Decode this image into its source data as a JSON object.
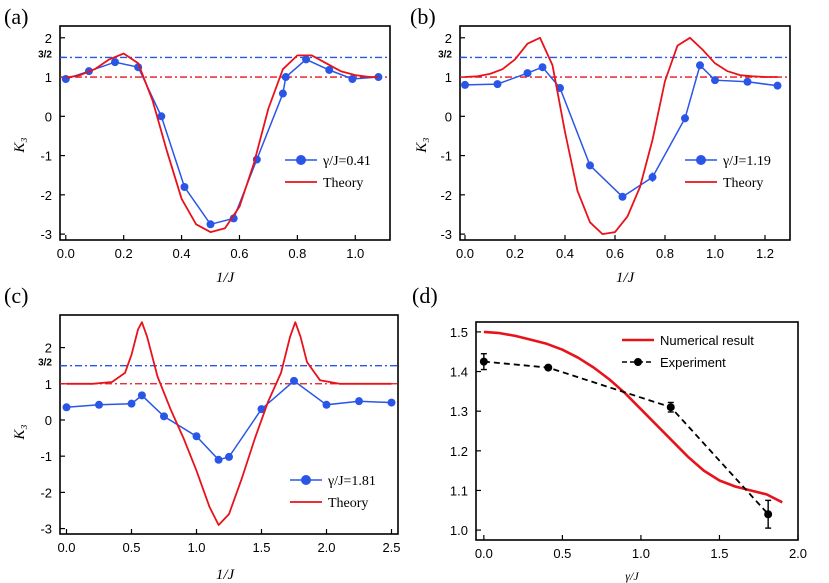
{
  "colors": {
    "experiment": "#2a56e8",
    "theory": "#e8121b",
    "ref_blue": "#2a56e8",
    "ref_red": "#e8121b",
    "numerical": "#e8121b",
    "exp_black": "#000000"
  },
  "chart_data": [
    {
      "panel": "(a)",
      "type": "line",
      "ylabel": "K₃",
      "xlabel": "1/J",
      "xlim": [
        -0.02,
        1.12
      ],
      "ylim": [
        -3.15,
        2.3
      ],
      "xticks": [
        0.0,
        0.2,
        0.4,
        0.6,
        0.8,
        1.0
      ],
      "xtick_labels": [
        "0.0",
        "0.2",
        "0.4",
        "0.6",
        "0.8",
        "1.0"
      ],
      "yticks": [
        -3,
        -2,
        -1,
        0,
        1,
        1.5,
        2
      ],
      "ytick_labels": [
        "-3",
        "-2",
        "-1",
        "0",
        "1",
        "3/2",
        "2"
      ],
      "reference_lines": [
        {
          "y": 1.5,
          "color": "blue",
          "style": "dashdot"
        },
        {
          "y": 1.0,
          "color": "red",
          "style": "dashdot"
        }
      ],
      "legend_position": "bottom-right",
      "series": [
        {
          "name": "γ/J=0.41",
          "kind": "experiment",
          "x": [
            0.0,
            0.08,
            0.17,
            0.25,
            0.33,
            0.41,
            0.5,
            0.58,
            0.66,
            0.75,
            0.76,
            0.83,
            0.91,
            0.99,
            1.08
          ],
          "y": [
            0.95,
            1.15,
            1.38,
            1.25,
            0.0,
            -1.8,
            -2.75,
            -2.6,
            -1.1,
            0.58,
            1.0,
            1.45,
            1.18,
            0.95,
            1.0
          ]
        },
        {
          "name": "Theory",
          "kind": "theory",
          "x": [
            0.0,
            0.05,
            0.1,
            0.15,
            0.2,
            0.25,
            0.3,
            0.35,
            0.4,
            0.45,
            0.5,
            0.55,
            0.6,
            0.65,
            0.7,
            0.75,
            0.8,
            0.85,
            0.9,
            0.95,
            1.0,
            1.05,
            1.08
          ],
          "y": [
            0.98,
            1.05,
            1.2,
            1.45,
            1.6,
            1.35,
            0.4,
            -0.9,
            -2.1,
            -2.75,
            -2.95,
            -2.85,
            -2.3,
            -1.2,
            0.2,
            1.2,
            1.55,
            1.55,
            1.35,
            1.15,
            1.05,
            1.0,
            1.0
          ]
        }
      ]
    },
    {
      "panel": "(b)",
      "type": "line",
      "ylabel": "K₃",
      "xlabel": "1/J",
      "xlim": [
        -0.02,
        1.3
      ],
      "ylim": [
        -3.15,
        2.3
      ],
      "xticks": [
        0.0,
        0.2,
        0.4,
        0.6,
        0.8,
        1.0,
        1.2
      ],
      "xtick_labels": [
        "0.0",
        "0.2",
        "0.4",
        "0.6",
        "0.8",
        "1.0",
        "1.2"
      ],
      "yticks": [
        -3,
        -2,
        -1,
        0,
        1,
        1.5,
        2
      ],
      "ytick_labels": [
        "-3",
        "-2",
        "-1",
        "0",
        "1",
        "3/2",
        "2"
      ],
      "reference_lines": [
        {
          "y": 1.5,
          "color": "blue",
          "style": "dashdot"
        },
        {
          "y": 1.0,
          "color": "red",
          "style": "dashdot"
        }
      ],
      "legend_position": "bottom-right",
      "series": [
        {
          "name": "γ/J=1.19",
          "kind": "experiment",
          "x": [
            0.0,
            0.13,
            0.25,
            0.31,
            0.38,
            0.5,
            0.63,
            0.75,
            0.88,
            0.94,
            1.0,
            1.13,
            1.25
          ],
          "y": [
            0.8,
            0.82,
            1.1,
            1.25,
            0.72,
            -1.25,
            -2.05,
            -1.55,
            -0.05,
            1.3,
            0.92,
            0.88,
            0.78
          ],
          "errors": [
            0,
            0,
            0.08,
            0,
            0,
            0,
            0,
            0.12,
            0.1,
            0,
            0,
            0,
            0
          ]
        },
        {
          "name": "Theory",
          "kind": "theory",
          "x": [
            0.0,
            0.05,
            0.1,
            0.15,
            0.2,
            0.25,
            0.3,
            0.35,
            0.4,
            0.45,
            0.5,
            0.55,
            0.6,
            0.65,
            0.7,
            0.75,
            0.8,
            0.85,
            0.9,
            0.95,
            1.0,
            1.05,
            1.1,
            1.15,
            1.2,
            1.25
          ],
          "y": [
            1.0,
            1.02,
            1.08,
            1.2,
            1.45,
            1.85,
            2.0,
            1.3,
            -0.4,
            -1.9,
            -2.7,
            -3.0,
            -2.95,
            -2.55,
            -1.8,
            -0.6,
            0.9,
            1.8,
            2.0,
            1.7,
            1.35,
            1.15,
            1.05,
            1.02,
            1.0,
            1.0
          ]
        }
      ]
    },
    {
      "panel": "(c)",
      "type": "line",
      "ylabel": "K₃",
      "xlabel": "1/J",
      "xlim": [
        -0.05,
        2.55
      ],
      "ylim": [
        -3.15,
        2.9
      ],
      "xticks": [
        0.0,
        0.5,
        1.0,
        1.5,
        2.0,
        2.5
      ],
      "xtick_labels": [
        "0.0",
        "0.5",
        "1.0",
        "1.5",
        "2.0",
        "2.5"
      ],
      "yticks": [
        -3,
        -2,
        -1,
        0,
        1,
        1.5,
        2
      ],
      "ytick_labels": [
        "-3",
        "-2",
        "-1",
        "0",
        "1",
        "3/2",
        "2"
      ],
      "reference_lines": [
        {
          "y": 1.5,
          "color": "blue",
          "style": "dashdot"
        },
        {
          "y": 1.0,
          "color": "red",
          "style": "dashdot"
        }
      ],
      "legend_position": "bottom-right",
      "series": [
        {
          "name": "γ/J=1.81",
          "kind": "experiment",
          "x": [
            0.0,
            0.25,
            0.5,
            0.58,
            0.75,
            1.0,
            1.17,
            1.25,
            1.5,
            1.75,
            2.0,
            2.25,
            2.5
          ],
          "y": [
            0.35,
            0.42,
            0.45,
            0.68,
            0.1,
            -0.45,
            -1.1,
            -1.02,
            0.3,
            1.08,
            0.42,
            0.52,
            0.48
          ],
          "errors": [
            0,
            0.1,
            0,
            0.08,
            0,
            0,
            0.06,
            0,
            0,
            0.06,
            0,
            0,
            0
          ]
        },
        {
          "name": "Theory",
          "kind": "theory",
          "x": [
            0.0,
            0.2,
            0.35,
            0.45,
            0.5,
            0.55,
            0.58,
            0.62,
            0.7,
            0.8,
            0.9,
            1.0,
            1.1,
            1.17,
            1.25,
            1.35,
            1.45,
            1.55,
            1.65,
            1.72,
            1.76,
            1.8,
            1.85,
            1.95,
            2.1,
            2.3,
            2.5
          ],
          "y": [
            1.0,
            1.0,
            1.05,
            1.3,
            1.8,
            2.5,
            2.7,
            2.3,
            1.2,
            0.3,
            -0.5,
            -1.4,
            -2.4,
            -2.9,
            -2.6,
            -1.6,
            -0.5,
            0.5,
            1.3,
            2.3,
            2.7,
            2.3,
            1.6,
            1.1,
            1.0,
            1.0,
            1.0
          ]
        }
      ]
    },
    {
      "panel": "(d)",
      "type": "line",
      "xlabel": "γ/J",
      "ylabel": "",
      "xlim": [
        -0.05,
        2.0
      ],
      "ylim": [
        0.975,
        1.525
      ],
      "xticks": [
        0.0,
        0.5,
        1.0,
        1.5,
        2.0
      ],
      "xtick_labels": [
        "0.0",
        "0.5",
        "1.0",
        "1.5",
        "2.0"
      ],
      "yticks": [
        1.0,
        1.1,
        1.2,
        1.3,
        1.4,
        1.5
      ],
      "ytick_labels": [
        "1.0",
        "1.1",
        "1.2",
        "1.3",
        "1.4",
        "1.5"
      ],
      "legend_position": "top-right",
      "series": [
        {
          "name": "Numerical result",
          "kind": "numerical",
          "x": [
            0.0,
            0.1,
            0.2,
            0.3,
            0.4,
            0.5,
            0.6,
            0.7,
            0.8,
            0.9,
            1.0,
            1.1,
            1.2,
            1.3,
            1.4,
            1.5,
            1.6,
            1.7,
            1.8,
            1.9
          ],
          "y": [
            1.5,
            1.497,
            1.49,
            1.48,
            1.47,
            1.455,
            1.435,
            1.41,
            1.38,
            1.345,
            1.305,
            1.265,
            1.225,
            1.185,
            1.15,
            1.125,
            1.11,
            1.1,
            1.09,
            1.07
          ]
        },
        {
          "name": "Experiment",
          "kind": "exp_black",
          "x": [
            0.0,
            0.41,
            1.19,
            1.81
          ],
          "y": [
            1.425,
            1.41,
            1.31,
            1.04
          ],
          "errors": [
            0.02,
            0.005,
            0.012,
            0.035
          ]
        }
      ]
    }
  ]
}
